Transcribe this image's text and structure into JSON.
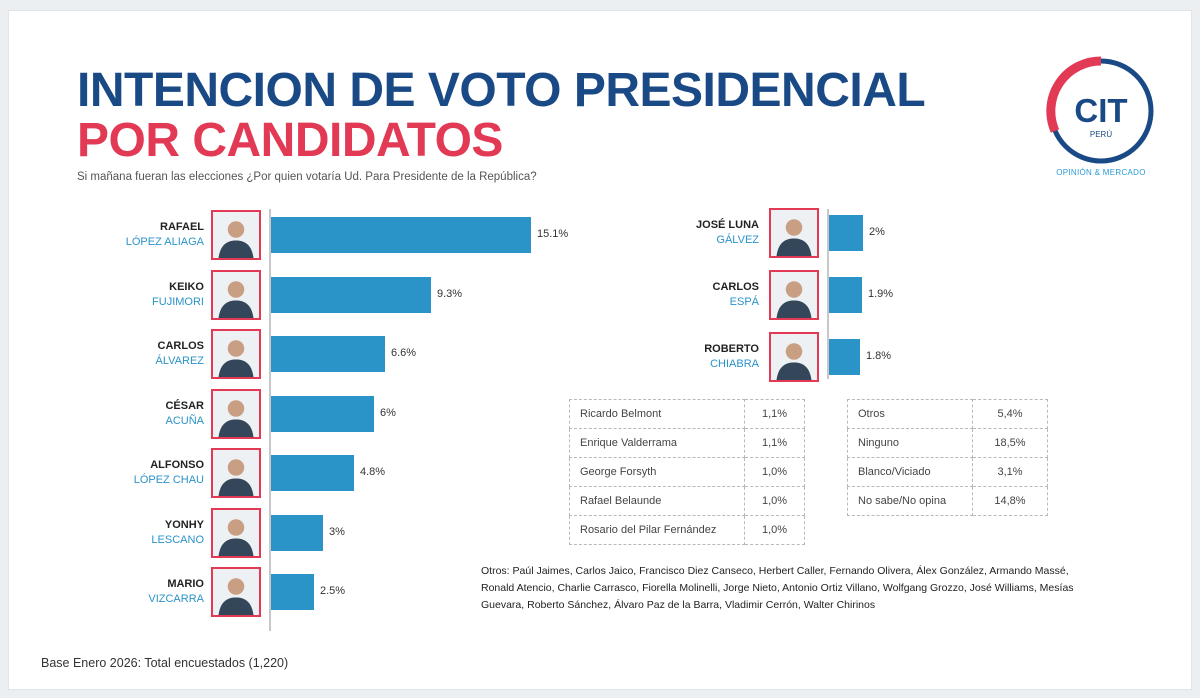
{
  "header": {
    "title_line1": "INTENCION DE VOTO PRESIDENCIAL",
    "title_line2": "POR CANDIDATOS",
    "subtitle": "Si mañana fueran las elecciones ¿Por quien votaría Ud. Para Presidente de la República?"
  },
  "logo": {
    "text": "CIT",
    "sub": "PERÚ",
    "tagline": "OPINIÓN & MERCADO"
  },
  "colors": {
    "title_blue": "#1a4a86",
    "title_red": "#e23a55",
    "bar": "#2a93c8",
    "photo_border": "#e23a55"
  },
  "chart_data": {
    "type": "bar",
    "orientation": "horizontal",
    "title": "INTENCION DE VOTO PRESIDENCIAL POR CANDIDATOS",
    "categories": [
      "RAFAEL LÓPEZ ALIAGA",
      "KEIKO FUJIMORI",
      "CARLOS ÁLVAREZ",
      "CÉSAR ACUÑA",
      "ALFONSO LÓPEZ CHAU",
      "YONHY LESCANO",
      "MARIO VIZCARRA",
      "JOSÉ LUNA GÁLVEZ",
      "CARLOS ESPÁ",
      "ROBERTO CHIABRA"
    ],
    "values": [
      15.1,
      9.3,
      6.6,
      6,
      4.8,
      3,
      2.5,
      2,
      1.9,
      1.8
    ],
    "grid": false,
    "candidates_left": [
      {
        "first": "RAFAEL",
        "last": "LÓPEZ ALIAGA",
        "value": 15.1,
        "label": "15.1%"
      },
      {
        "first": "KEIKO",
        "last": "FUJIMORI",
        "value": 9.3,
        "label": "9.3%"
      },
      {
        "first": "CARLOS",
        "last": "ÁLVAREZ",
        "value": 6.6,
        "label": "6.6%"
      },
      {
        "first": "CÉSAR",
        "last": "ACUÑA",
        "value": 6,
        "label": "6%"
      },
      {
        "first": "ALFONSO",
        "last": "LÓPEZ CHAU",
        "value": 4.8,
        "label": "4.8%"
      },
      {
        "first": "YONHY",
        "last": "LESCANO",
        "value": 3,
        "label": "3%"
      },
      {
        "first": "MARIO",
        "last": "VIZCARRA",
        "value": 2.5,
        "label": "2.5%"
      }
    ],
    "candidates_right": [
      {
        "first": "JOSÉ LUNA",
        "last": "GÁLVEZ",
        "value": 2,
        "label": "2%"
      },
      {
        "first": "CARLOS",
        "last": "ESPÁ",
        "value": 1.9,
        "label": "1.9%"
      },
      {
        "first": "ROBERTO",
        "last": "CHIABRA",
        "value": 1.8,
        "label": "1.8%"
      }
    ],
    "table_left": [
      {
        "name": "Ricardo Belmont",
        "value": "1,1%"
      },
      {
        "name": "Enrique Valderrama",
        "value": "1,1%"
      },
      {
        "name": "George Forsyth",
        "value": "1,0%"
      },
      {
        "name": "Rafael Belaunde",
        "value": "1,0%"
      },
      {
        "name": "Rosario del Pilar Fernández",
        "value": "1,0%"
      }
    ],
    "table_right": [
      {
        "name": "Otros",
        "value": "5,4%"
      },
      {
        "name": "Ninguno",
        "value": "18,5%"
      },
      {
        "name": "Blanco/Viciado",
        "value": "3,1%"
      },
      {
        "name": "No sabe/No opina",
        "value": "14,8%"
      }
    ]
  },
  "others_note": "Otros: Paúl Jaimes, Carlos Jaico, Francisco Diez Canseco, Herbert Caller, Fernando Olivera, Álex González, Armando Massé, Ronald Atencio, Charlie Carrasco, Fiorella Molinelli, Jorge Nieto, Antonio Ortiz Villano, Wolfgang Grozzo,  José Williams, Mesías Guevara, Roberto Sánchez, Álvaro Paz de la Barra, Vladimir Cerrón, Walter Chirinos",
  "footer": {
    "base": "Base Enero 2026: Total encuestados (1,220)"
  }
}
